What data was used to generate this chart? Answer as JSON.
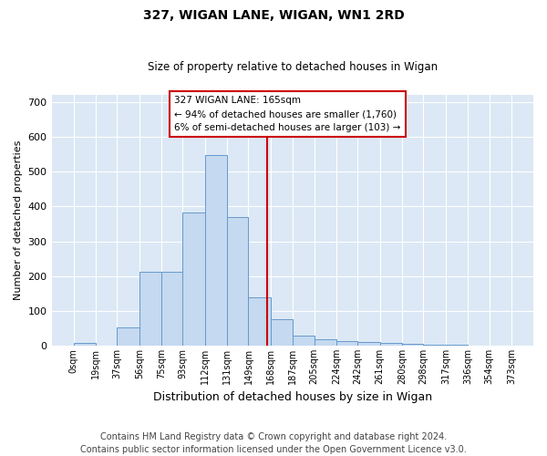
{
  "title": "327, WIGAN LANE, WIGAN, WN1 2RD",
  "subtitle": "Size of property relative to detached houses in Wigan",
  "xlabel": "Distribution of detached houses by size in Wigan",
  "ylabel": "Number of detached properties",
  "bar_color": "#c5d9f0",
  "bar_edgecolor": "#6699cc",
  "background_color": "#dce8f5",
  "vline_x": 165,
  "vline_color": "#cc0000",
  "annotation_text": "327 WIGAN LANE: 165sqm\n← 94% of detached houses are smaller (1,760)\n6% of semi-detached houses are larger (103) →",
  "annotation_box_edgecolor": "#cc0000",
  "bins": [
    0,
    19,
    37,
    56,
    75,
    93,
    112,
    131,
    149,
    168,
    187,
    205,
    224,
    242,
    261,
    280,
    298,
    317,
    336,
    354,
    373
  ],
  "bin_labels": [
    "0sqm",
    "19sqm",
    "37sqm",
    "56sqm",
    "75sqm",
    "93sqm",
    "112sqm",
    "131sqm",
    "149sqm",
    "168sqm",
    "187sqm",
    "205sqm",
    "224sqm",
    "242sqm",
    "261sqm",
    "280sqm",
    "298sqm",
    "317sqm",
    "336sqm",
    "354sqm",
    "373sqm"
  ],
  "bar_heights": [
    7,
    0,
    52,
    213,
    213,
    382,
    548,
    369,
    140,
    75,
    30,
    18,
    14,
    10,
    8,
    5,
    3,
    2,
    1,
    1
  ],
  "ylim": [
    0,
    720
  ],
  "yticks": [
    0,
    100,
    200,
    300,
    400,
    500,
    600,
    700
  ],
  "footer": "Contains HM Land Registry data © Crown copyright and database right 2024.\nContains public sector information licensed under the Open Government Licence v3.0.",
  "footer_fontsize": 7.0,
  "title_fontsize": 10,
  "subtitle_fontsize": 8.5,
  "ylabel_fontsize": 8,
  "xlabel_fontsize": 9
}
